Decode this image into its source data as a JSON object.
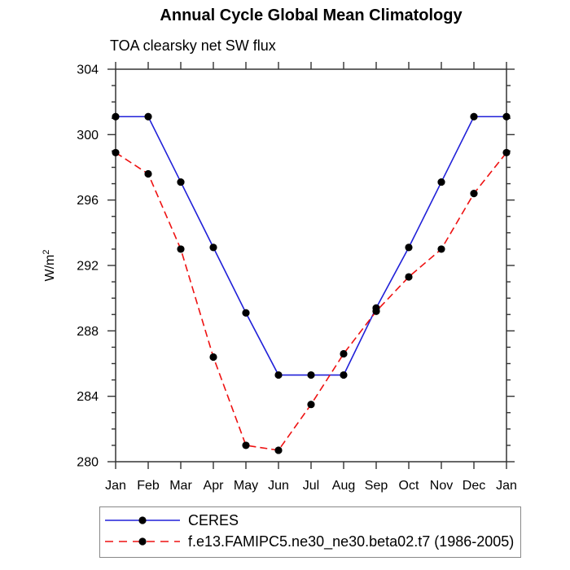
{
  "chart_data": {
    "type": "line",
    "title": "Annual Cycle Global Mean Climatology",
    "subtitle": "TOA clearsky net SW flux",
    "ylabel": "W/m",
    "ylabel_sup": "2",
    "x": [
      "Jan",
      "Feb",
      "Mar",
      "Apr",
      "May",
      "Jun",
      "Jul",
      "Aug",
      "Sep",
      "Oct",
      "Nov",
      "Dec",
      "Jan"
    ],
    "ylim": [
      280,
      304
    ],
    "yticks": [
      280,
      284,
      288,
      292,
      296,
      300,
      304
    ],
    "ytick_minor_step": 1,
    "grid": false,
    "legend_position": "bottom",
    "axis_color": "#333333",
    "marker_color": "#000000",
    "series": [
      {
        "name": "CERES",
        "color": "#2020d8",
        "style": "solid",
        "marker": "circle",
        "values": [
          301.1,
          301.1,
          297.1,
          293.1,
          289.1,
          285.3,
          285.3,
          285.3,
          289.4,
          293.1,
          297.1,
          301.1,
          301.1
        ]
      },
      {
        "name": "f.e13.FAMIPC5.ne30_ne30.beta02.t7 (1986-2005)",
        "color": "#ee1111",
        "style": "dashed",
        "marker": "circle",
        "values": [
          298.9,
          297.6,
          293.0,
          286.4,
          281.0,
          280.7,
          283.5,
          286.6,
          289.2,
          291.3,
          293.0,
          296.4,
          298.9
        ]
      }
    ]
  }
}
